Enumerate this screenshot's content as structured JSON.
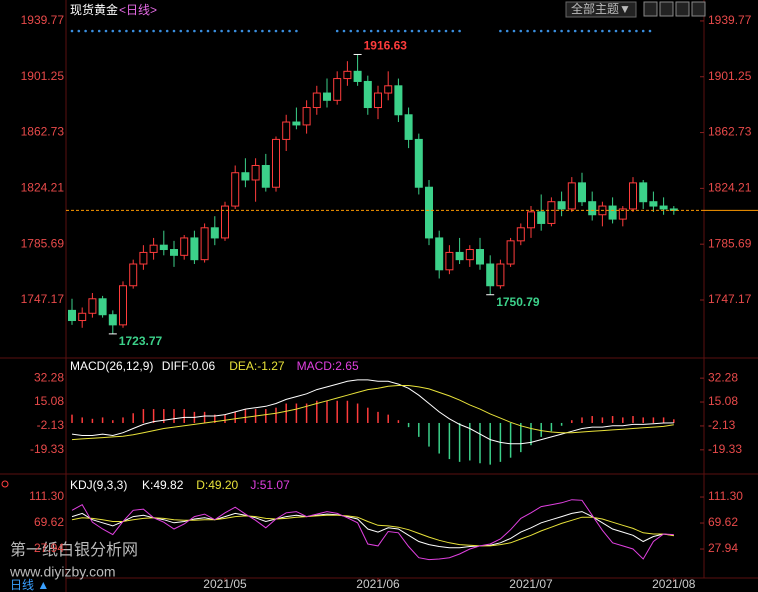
{
  "header": {
    "title": "现货黄金",
    "period": "<日线>",
    "theme_button": "全部主题▼",
    "watermark": "第一纸白银分析网",
    "watermark_url": "www.diyizby.com",
    "footer_tab": "日线 ▲"
  },
  "chart_data": [
    {
      "type": "candlestick",
      "up_color": "#ff3c3c",
      "down_color": "#3cd18a",
      "last_line_color": "#ff9900",
      "categories": [
        null,
        null,
        null,
        null,
        null,
        null,
        null,
        null,
        null,
        null,
        null,
        null,
        null,
        null,
        null,
        "2021/05",
        null,
        null,
        null,
        null,
        null,
        null,
        null,
        null,
        null,
        null,
        null,
        null,
        null,
        null,
        "2021/06",
        null,
        null,
        null,
        null,
        null,
        null,
        null,
        null,
        null,
        null,
        null,
        null,
        null,
        null,
        "2021/07",
        null,
        null,
        null,
        null,
        null,
        null,
        null,
        null,
        null,
        null,
        null,
        null,
        null,
        "2021/08"
      ],
      "candles": [
        [
          1740,
          1748,
          1730,
          1733
        ],
        [
          1733,
          1742,
          1728,
          1738
        ],
        [
          1738,
          1752,
          1735,
          1748
        ],
        [
          1748,
          1750,
          1735,
          1737
        ],
        [
          1737,
          1740,
          1723.77,
          1730
        ],
        [
          1730,
          1760,
          1728,
          1757
        ],
        [
          1757,
          1775,
          1755,
          1772
        ],
        [
          1772,
          1785,
          1768,
          1780
        ],
        [
          1780,
          1790,
          1775,
          1785
        ],
        [
          1785,
          1795,
          1778,
          1782
        ],
        [
          1782,
          1788,
          1770,
          1778
        ],
        [
          1778,
          1792,
          1775,
          1790
        ],
        [
          1790,
          1795,
          1772,
          1775
        ],
        [
          1775,
          1800,
          1773,
          1797
        ],
        [
          1797,
          1805,
          1785,
          1790
        ],
        [
          1790,
          1815,
          1788,
          1812
        ],
        [
          1812,
          1840,
          1810,
          1835
        ],
        [
          1835,
          1845,
          1825,
          1830
        ],
        [
          1830,
          1845,
          1815,
          1840
        ],
        [
          1840,
          1848,
          1822,
          1825
        ],
        [
          1825,
          1860,
          1822,
          1858
        ],
        [
          1858,
          1875,
          1850,
          1870
        ],
        [
          1870,
          1880,
          1865,
          1868
        ],
        [
          1868,
          1885,
          1862,
          1880
        ],
        [
          1880,
          1895,
          1875,
          1890
        ],
        [
          1890,
          1900,
          1880,
          1885
        ],
        [
          1885,
          1905,
          1882,
          1900
        ],
        [
          1900,
          1912,
          1895,
          1905
        ],
        [
          1905,
          1916.63,
          1895,
          1898
        ],
        [
          1898,
          1902,
          1875,
          1880
        ],
        [
          1880,
          1895,
          1872,
          1890
        ],
        [
          1890,
          1905,
          1885,
          1895
        ],
        [
          1895,
          1900,
          1870,
          1875
        ],
        [
          1875,
          1880,
          1852,
          1858
        ],
        [
          1858,
          1862,
          1820,
          1825
        ],
        [
          1825,
          1830,
          1785,
          1790
        ],
        [
          1790,
          1795,
          1762,
          1768
        ],
        [
          1768,
          1785,
          1765,
          1780
        ],
        [
          1780,
          1790,
          1772,
          1775
        ],
        [
          1775,
          1785,
          1770,
          1782
        ],
        [
          1782,
          1790,
          1768,
          1772
        ],
        [
          1772,
          1778,
          1750.79,
          1757
        ],
        [
          1757,
          1775,
          1755,
          1772
        ],
        [
          1772,
          1790,
          1770,
          1788
        ],
        [
          1788,
          1800,
          1785,
          1797
        ],
        [
          1797,
          1812,
          1790,
          1808
        ],
        [
          1808,
          1820,
          1795,
          1800
        ],
        [
          1800,
          1818,
          1798,
          1815
        ],
        [
          1815,
          1822,
          1805,
          1810
        ],
        [
          1810,
          1832,
          1808,
          1828
        ],
        [
          1828,
          1835,
          1812,
          1815
        ],
        [
          1815,
          1822,
          1802,
          1806
        ],
        [
          1806,
          1815,
          1798,
          1812
        ],
        [
          1812,
          1818,
          1800,
          1803
        ],
        [
          1803,
          1812,
          1798,
          1810
        ],
        [
          1810,
          1832,
          1808,
          1828
        ],
        [
          1828,
          1830,
          1810,
          1815
        ],
        [
          1815,
          1822,
          1808,
          1812
        ],
        [
          1812,
          1818,
          1806,
          1810
        ],
        [
          1810,
          1812,
          1806,
          1809
        ]
      ],
      "ylim": [
        1709.2,
        1948.7
      ],
      "yticks": [
        1939.77,
        1901.25,
        1862.73,
        1824.21,
        1785.69,
        1747.17
      ],
      "annotations": [
        {
          "index": 28,
          "field": 1
        },
        {
          "index": 41,
          "field": 2
        },
        {
          "index": 4,
          "field": 2
        }
      ]
    },
    {
      "type": "macd",
      "title": "MACD(26,12,9)",
      "ylim": [
        -35.3,
        43.9
      ],
      "yticks": [
        32.28,
        15.08,
        -2.13,
        -19.33
      ],
      "series": [
        {
          "name": "DIFF:0.06",
          "kind": "line",
          "color": "#ffffff",
          "values": [
            -8,
            -9,
            -9,
            -8,
            -9,
            -7,
            -4,
            -1,
            1,
            2,
            3,
            4,
            4,
            5,
            5,
            6,
            8,
            10,
            11,
            12,
            14,
            17,
            19,
            21,
            24,
            26,
            28,
            30,
            31,
            31,
            30,
            30,
            28,
            25,
            20,
            14,
            8,
            3,
            -1,
            -4,
            -8,
            -12,
            -14,
            -15,
            -15,
            -14,
            -12,
            -10,
            -8,
            -6,
            -4,
            -3,
            -3,
            -2,
            -2,
            -1,
            -1,
            -0.5,
            0,
            0.06
          ]
        },
        {
          "name": "DEA:-1.27",
          "kind": "line",
          "color": "#e8e23a",
          "values": [
            -12,
            -11.5,
            -11,
            -10.5,
            -10,
            -9.5,
            -8.5,
            -7,
            -5.5,
            -4,
            -3,
            -2,
            -1,
            0,
            1,
            2,
            3,
            4,
            5,
            6,
            7,
            8.5,
            10,
            12,
            14,
            16,
            18,
            20,
            22,
            24,
            25,
            26.5,
            27,
            27,
            26,
            24.5,
            22,
            19.5,
            16.5,
            13,
            10,
            6.5,
            3.5,
            0.5,
            -2,
            -4,
            -5.5,
            -6.5,
            -7,
            -7,
            -6.5,
            -6,
            -5.5,
            -5,
            -4.5,
            -4,
            -3.5,
            -3,
            -2.5,
            -1.27
          ]
        },
        {
          "name": "MACD:2.65",
          "kind": "histogram",
          "color": "#e040e0",
          "up_color": "#ff3c3c",
          "down_color": "#3cd18a",
          "values": [
            6,
            4,
            3,
            4,
            2,
            4,
            7,
            10,
            10,
            10,
            10,
            10,
            8,
            8,
            6,
            6,
            8,
            10,
            10,
            10,
            11,
            14,
            14,
            14,
            16,
            16,
            16,
            16,
            14,
            11,
            8,
            6,
            2,
            -3,
            -10,
            -17,
            -22,
            -26,
            -28,
            -27,
            -29,
            -30,
            -28,
            -25,
            -21,
            -16,
            -10,
            -6,
            -2,
            2,
            4,
            5,
            4,
            5,
            4,
            5,
            4,
            4,
            4,
            2.65
          ]
        }
      ]
    },
    {
      "type": "kdj",
      "title": "KDJ(9,3,3)",
      "ylim": [
        -18.5,
        141.8
      ],
      "yticks": [
        {
          "value": 111.3,
          "label": "111.30"
        },
        69.62,
        27.94
      ],
      "series": [
        {
          "name": "K:49.82",
          "color": "#ffffff",
          "values": [
            80,
            85,
            75,
            70,
            65,
            72,
            80,
            82,
            78,
            75,
            70,
            72,
            76,
            78,
            75,
            80,
            85,
            82,
            78,
            72,
            76,
            80,
            82,
            80,
            82,
            84,
            83,
            80,
            76,
            60,
            55,
            62,
            60,
            50,
            40,
            35,
            32,
            30,
            30,
            32,
            33,
            34,
            38,
            45,
            55,
            62,
            70,
            75,
            80,
            85,
            88,
            80,
            70,
            60,
            55,
            50,
            40,
            48,
            52,
            49.82
          ]
        },
        {
          "name": "D:49.20",
          "color": "#e8e23a",
          "values": [
            75,
            78,
            77,
            75,
            72,
            72,
            75,
            77,
            78,
            77,
            75,
            74,
            74,
            75,
            75,
            77,
            80,
            81,
            80,
            77,
            76,
            77,
            79,
            80,
            81,
            82,
            82,
            81,
            79,
            72,
            66,
            65,
            63,
            59,
            53,
            47,
            42,
            38,
            35,
            34,
            33,
            33,
            35,
            38,
            44,
            50,
            57,
            63,
            69,
            74,
            79,
            79,
            76,
            71,
            66,
            61,
            54,
            52,
            52,
            49.2
          ]
        },
        {
          "name": "J:51.07",
          "color": "#e040e0",
          "values": [
            90,
            99,
            71,
            60,
            51,
            72,
            90,
            92,
            78,
            71,
            60,
            68,
            80,
            84,
            75,
            86,
            95,
            84,
            74,
            62,
            76,
            86,
            88,
            80,
            84,
            88,
            85,
            78,
            70,
            36,
            33,
            56,
            54,
            32,
            14,
            11,
            12,
            14,
            20,
            28,
            33,
            36,
            44,
            59,
            77,
            86,
            96,
            99,
            102,
            107,
            106,
            82,
            58,
            38,
            33,
            28,
            12,
            40,
            52,
            51.07
          ]
        }
      ]
    }
  ]
}
